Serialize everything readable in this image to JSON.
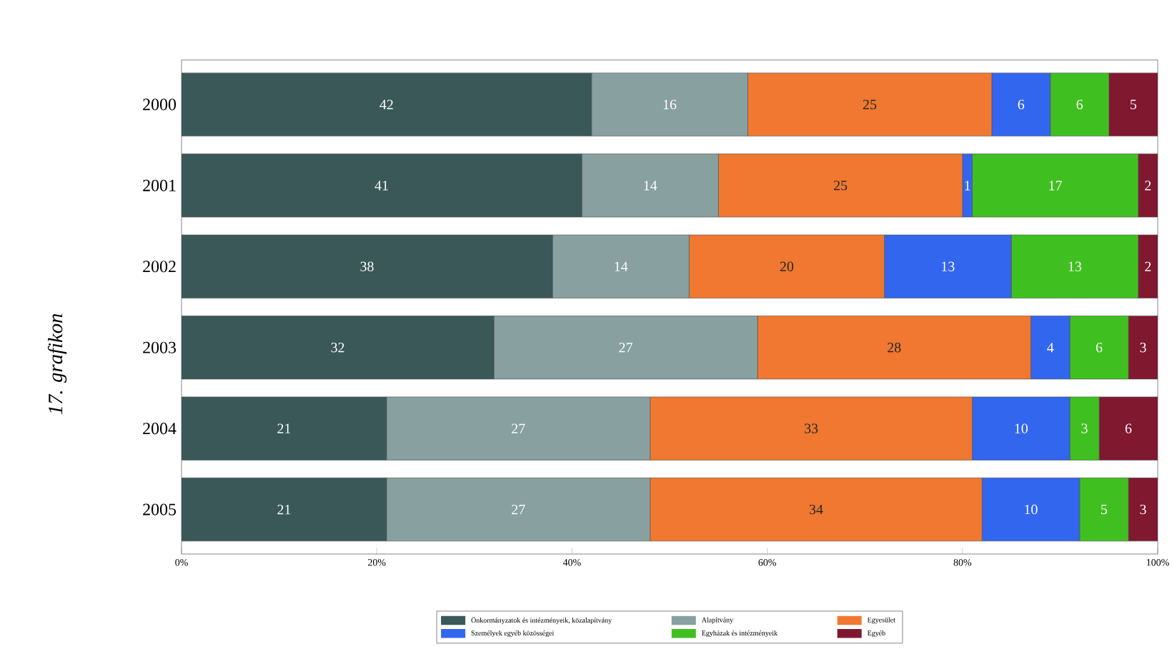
{
  "chart_data": {
    "type": "bar",
    "orientation": "horizontal",
    "stacked": true,
    "data_labels": true,
    "legend": "bottom",
    "grid": false,
    "categories": [
      "2000",
      "2001",
      "2002",
      "2003",
      "2004",
      "2005"
    ],
    "xlim": [
      0,
      100
    ],
    "xticks": [
      {
        "value": 0,
        "label": "0%"
      },
      {
        "value": 20,
        "label": "20%"
      },
      {
        "value": 40,
        "label": "40%"
      },
      {
        "value": 60,
        "label": "60%"
      },
      {
        "value": 80,
        "label": "80%"
      },
      {
        "value": 100,
        "label": "100%"
      }
    ],
    "annotations": [
      "17. grafikon"
    ],
    "series": [
      {
        "name": "Önkormányzatok és intézményeik, közalapítvány",
        "color": "#3a5858",
        "values": [
          42,
          41,
          38,
          32,
          21,
          21
        ]
      },
      {
        "name": "Alapítvány",
        "color": "#88a0a0",
        "values": [
          16,
          14,
          14,
          27,
          27,
          27
        ]
      },
      {
        "name": "Egyesület",
        "color": "#f07830",
        "values": [
          25,
          25,
          20,
          28,
          33,
          34
        ]
      },
      {
        "name": "Személyek egyéb közösségei",
        "color": "#3366ee",
        "values": [
          6,
          1,
          13,
          4,
          10,
          10
        ]
      },
      {
        "name": "Egyházak és intézményeik",
        "color": "#40c020",
        "values": [
          6,
          17,
          13,
          6,
          3,
          5
        ]
      },
      {
        "name": "Egyéb",
        "color": "#801830",
        "values": [
          5,
          2,
          2,
          3,
          6,
          3
        ]
      }
    ]
  }
}
